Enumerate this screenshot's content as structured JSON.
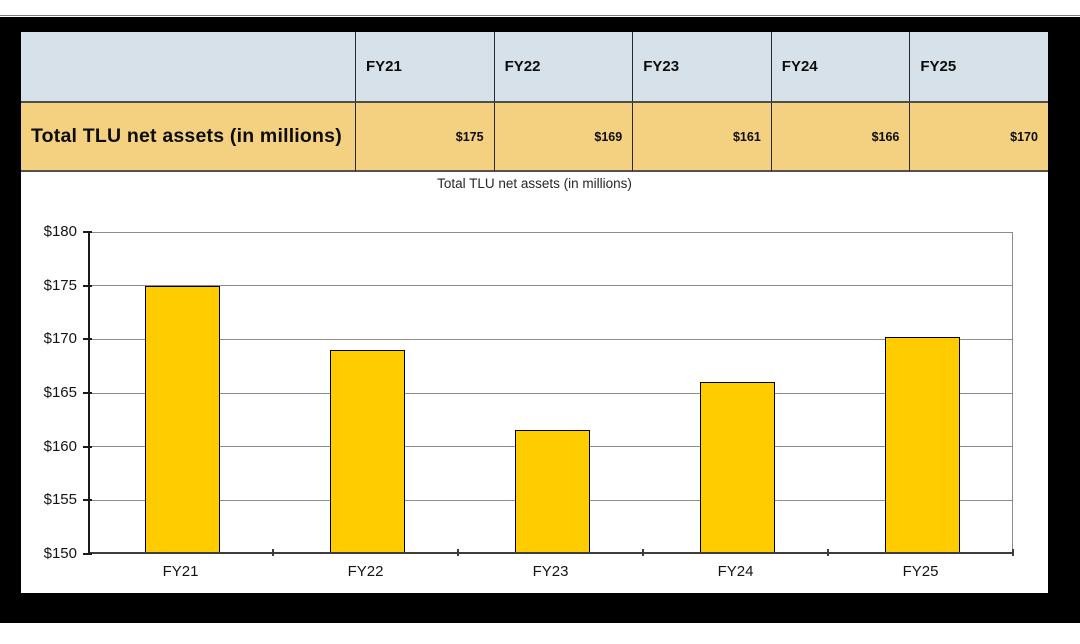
{
  "window": {
    "top_strip_color": "#ffffff",
    "frame_color": "#000000"
  },
  "table": {
    "header_bg": "#d6e1e9",
    "row_bg": "#f4d181",
    "columns": [
      "FY21",
      "FY22",
      "FY23",
      "FY24",
      "FY25"
    ],
    "row_label": "Total TLU net assets (in millions)",
    "values": [
      "$175",
      "$169",
      "$161",
      "$166",
      "$170"
    ]
  },
  "chart_data": {
    "type": "bar",
    "title": "Total TLU net assets (in millions)",
    "categories": [
      "FY21",
      "FY22",
      "FY23",
      "FY24",
      "FY25"
    ],
    "values": [
      174.8,
      168.8,
      161.4,
      165.8,
      170.0
    ],
    "xlabel": "",
    "ylabel": "",
    "ylim": [
      150,
      180
    ],
    "ytick_step": 5,
    "ytick_labels": [
      "$150",
      "$155",
      "$160",
      "$165",
      "$170",
      "$175",
      "$180"
    ],
    "grid": true,
    "legend_position": "none",
    "bar_color": "#ffcc00",
    "bar_border_color": "#000000",
    "gridline_color": "#8c8c8c",
    "axis_color": "#1a1a1a"
  }
}
